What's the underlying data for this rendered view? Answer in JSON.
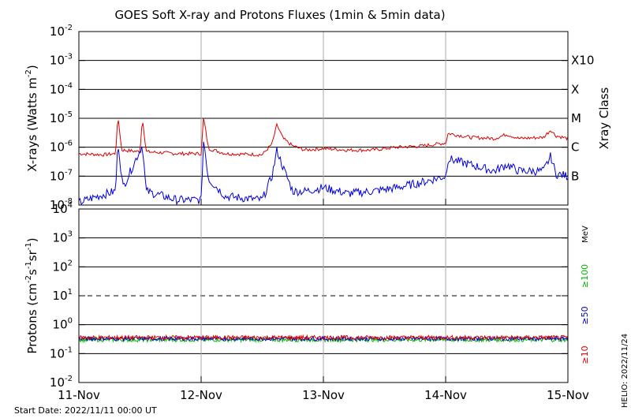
{
  "chart_data": [
    {
      "type": "line",
      "title": "GOES Soft X-ray and Protons Fluxes   (1min & 5min data)",
      "ylabel": "X-rays (Watts m",
      "ylabel_exp": "-2",
      "ylabel_close": ")",
      "yscale": "log",
      "ylim": [
        1e-08,
        0.01
      ],
      "yticks": [
        {
          "base": "10",
          "exp": "-2"
        },
        {
          "base": "10",
          "exp": "-3"
        },
        {
          "base": "10",
          "exp": "-4"
        },
        {
          "base": "10",
          "exp": "-5"
        },
        {
          "base": "10",
          "exp": "-6"
        },
        {
          "base": "10",
          "exp": "-7"
        },
        {
          "base": "10",
          "exp": "-8"
        }
      ],
      "xray_class_label": "Xray Class",
      "xray_classes": [
        "X10",
        "X",
        "M",
        "C",
        "B"
      ],
      "xlim": [
        "2022-11-11",
        "2022-11-15"
      ],
      "series": [
        {
          "color": "#dd0000",
          "x_days": [
            0,
            0.2,
            0.3,
            0.32,
            0.35,
            0.5,
            0.52,
            0.55,
            0.8,
            1.0,
            1.02,
            1.06,
            1.2,
            1.5,
            1.58,
            1.62,
            1.67,
            1.75,
            1.85,
            2.0,
            2.2,
            2.4,
            2.6,
            2.8,
            3.0,
            3.02,
            3.2,
            3.4,
            3.5,
            3.6,
            3.8,
            3.86,
            3.9,
            4.0
          ],
          "values": [
            6e-07,
            5.5e-07,
            6e-07,
            1.2e-05,
            8e-07,
            7e-07,
            1.1e-05,
            7e-07,
            6e-07,
            6e-07,
            1.1e-05,
            9e-07,
            6e-07,
            5.5e-07,
            1.3e-06,
            6e-06,
            2e-06,
            1.1e-06,
            8e-07,
            9e-07,
            8e-07,
            8e-07,
            1e-06,
            1.1e-06,
            1.4e-06,
            3e-06,
            2.2e-06,
            2e-06,
            2.8e-06,
            2e-06,
            2.2e-06,
            4e-06,
            2.5e-06,
            2e-06
          ]
        },
        {
          "color": "#0000dd",
          "x_days": [
            0,
            0.15,
            0.3,
            0.32,
            0.36,
            0.52,
            0.55,
            0.8,
            1.0,
            1.02,
            1.06,
            1.2,
            1.5,
            1.58,
            1.62,
            1.67,
            1.75,
            1.85,
            2.0,
            2.2,
            2.4,
            2.6,
            2.8,
            3.0,
            3.02,
            3.2,
            3.4,
            3.5,
            3.6,
            3.8,
            3.86,
            3.9,
            4.0
          ],
          "values": [
            1.2e-08,
            2e-08,
            3e-08,
            1.6e-06,
            4e-08,
            1.2e-06,
            3e-08,
            1.5e-08,
            1.5e-08,
            2e-06,
            8e-08,
            2e-08,
            1.5e-08,
            1e-07,
            8e-07,
            2e-07,
            3e-08,
            3e-08,
            4e-08,
            2.5e-08,
            3e-08,
            4e-08,
            6e-08,
            1e-07,
            4e-07,
            2.5e-07,
            1.5e-07,
            2.5e-07,
            1.5e-07,
            1.5e-07,
            5e-07,
            1.2e-07,
            1e-07
          ]
        }
      ]
    },
    {
      "type": "line",
      "ylabel": "Protons (cm",
      "ylabel_exp1": "-2",
      "ylabel_mid": "s",
      "ylabel_exp2": "-1",
      "ylabel_mid2": "sr",
      "ylabel_exp3": "-1",
      "ylabel_close": ")",
      "yscale": "log",
      "ylim": [
        0.01,
        10000
      ],
      "yticks": [
        {
          "base": "10",
          "exp": "4"
        },
        {
          "base": "10",
          "exp": "3"
        },
        {
          "base": "10",
          "exp": "2"
        },
        {
          "base": "10",
          "exp": "1"
        },
        {
          "base": "10",
          "exp": "0"
        },
        {
          "base": "10",
          "exp": "-1"
        },
        {
          "base": "10",
          "exp": "-2"
        }
      ],
      "threshold_value": 10,
      "energy_unit": "MeV",
      "xticks": [
        "11-Nov",
        "12-Nov",
        "13-Nov",
        "14-Nov",
        "15-Nov"
      ],
      "series": [
        {
          "name": "≥100",
          "color": "#00bb00",
          "level": 0.3
        },
        {
          "name": "≥50",
          "color": "#0000cc",
          "level": 0.33
        },
        {
          "name": "≥10",
          "color": "#dd0000",
          "level": 0.36
        }
      ]
    }
  ],
  "footer": {
    "start_date": "Start Date: 2022/11/11 00:00 UT",
    "helio": "HELIO: 2022/11/24"
  }
}
